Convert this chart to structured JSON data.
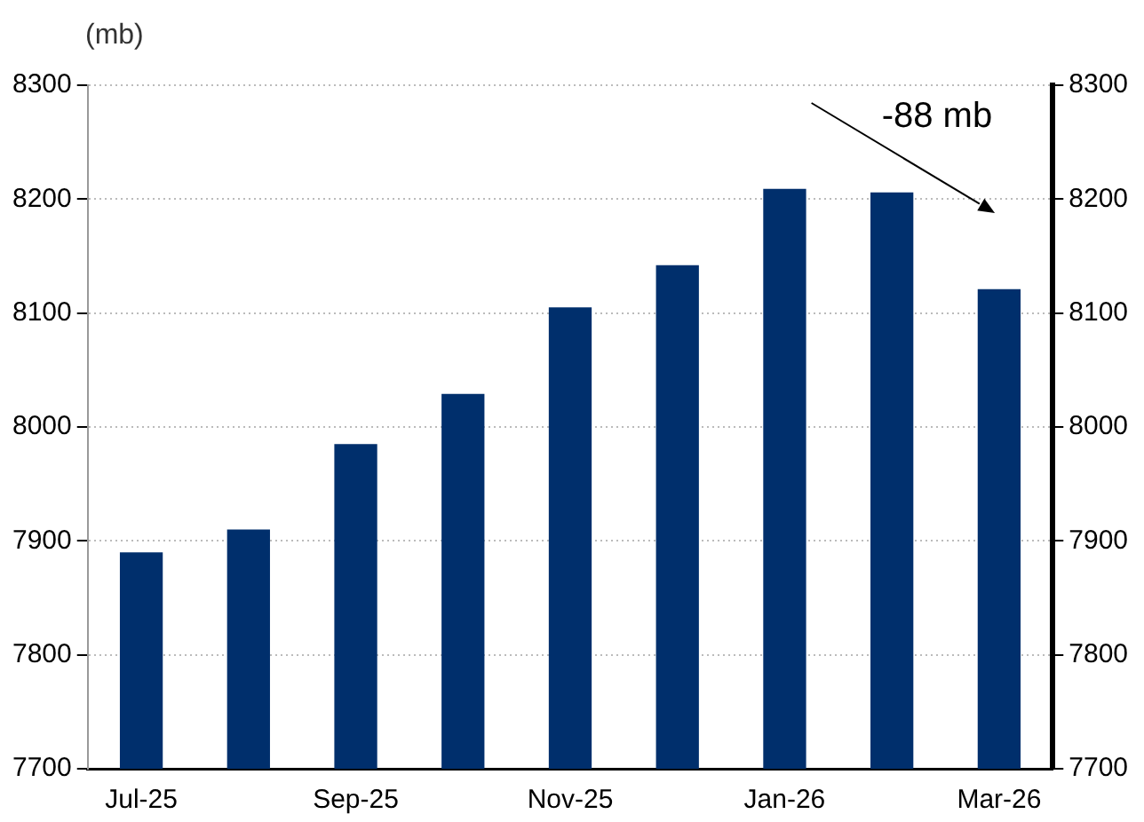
{
  "chart_data": {
    "type": "bar",
    "ylabel": "(mb)",
    "categories": [
      "Jul-25",
      null,
      "Sep-25",
      null,
      "Nov-25",
      null,
      "Jan-26",
      null,
      "Mar-26"
    ],
    "values": [
      7890,
      7910,
      7985,
      8029,
      8105,
      8142,
      8209,
      8206,
      8121
    ],
    "color": "#002f6c",
    "ylim": [
      7700,
      8300
    ],
    "yticks": [
      7700,
      7800,
      7900,
      8000,
      8100,
      8200,
      8300
    ],
    "y2lim": [
      7700,
      8300
    ],
    "y2ticks": [
      7700,
      7800,
      7900,
      8000,
      8100,
      8200,
      8300
    ],
    "annotations": [
      "-88 mb"
    ],
    "grid": "y",
    "legend": false
  }
}
